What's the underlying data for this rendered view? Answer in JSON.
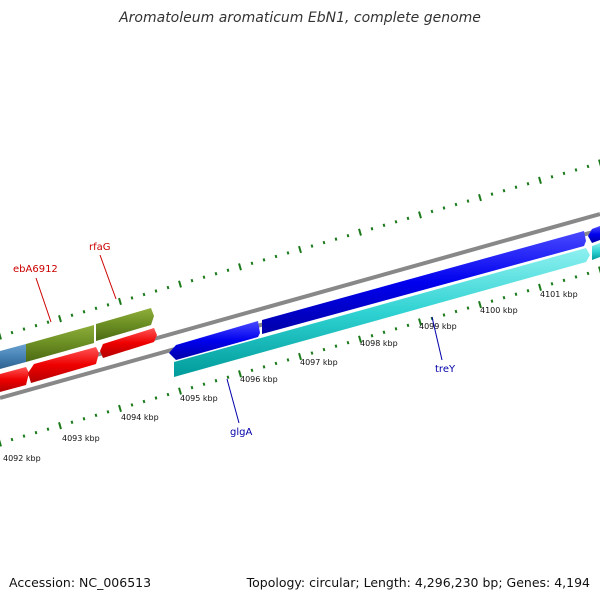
{
  "header": {
    "title": "Aromatoleum aromaticum EbN1, complete genome"
  },
  "footer": {
    "accession": "Accession: NC_006513",
    "summary": "Topology: circular; Length: 4,296,230 bp; Genes: 4,194"
  },
  "tick_labels": [
    {
      "text": "4092 kbp",
      "kbp": 4092
    },
    {
      "text": "4093 kbp",
      "kbp": 4093
    },
    {
      "text": "4094 kbp",
      "kbp": 4094
    },
    {
      "text": "4095 kbp",
      "kbp": 4095
    },
    {
      "text": "4096 kbp",
      "kbp": 4096
    },
    {
      "text": "4097 kbp",
      "kbp": 4097
    },
    {
      "text": "4098 kbp",
      "kbp": 4098
    },
    {
      "text": "4099 kbp",
      "kbp": 4099
    },
    {
      "text": "4100 kbp",
      "kbp": 4100
    },
    {
      "text": "4101 kbp",
      "kbp": 4101
    }
  ],
  "gene_labels": [
    {
      "text": "ebA6912",
      "color": "#cc0000"
    },
    {
      "text": "rfaG",
      "color": "#cc0000"
    },
    {
      "text": "glgA",
      "color": "#0000aa"
    },
    {
      "text": "treY",
      "color": "#0000aa"
    }
  ],
  "colors": {
    "backbone": "#888888",
    "tick": "#1a7a1a",
    "olive_feature": "#6b8e23",
    "steelblue_feature": "#4682b4",
    "red_feature": "#ee0000",
    "blue_feature": "#0000ee",
    "cyan_feature": "#00cccc"
  }
}
